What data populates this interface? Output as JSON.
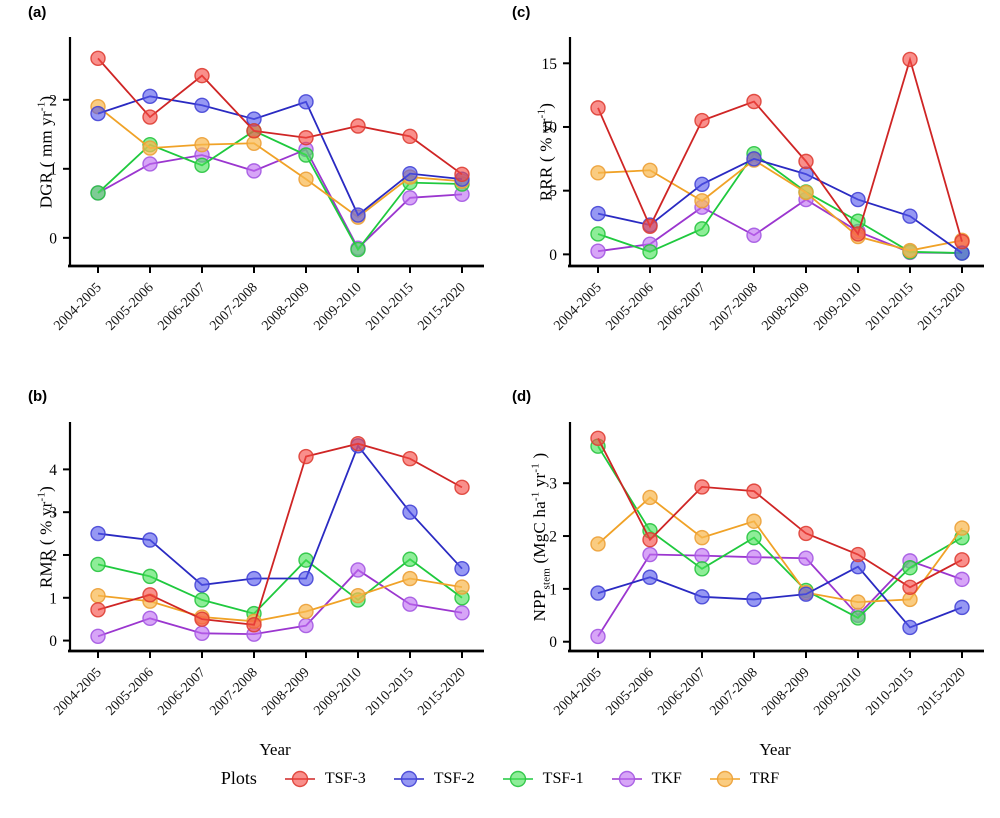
{
  "x_axis_title": "Year",
  "legend": {
    "title": "Plots",
    "items": [
      {
        "label": "TSF-3"
      },
      {
        "label": "TSF-2"
      },
      {
        "label": "TSF-1"
      },
      {
        "label": "TKF"
      },
      {
        "label": "TRF"
      }
    ]
  },
  "plot_colors": {
    "TSF-3": {
      "line": "#cf2525",
      "fill": "rgba(245,75,68,0.62)",
      "stroke": "rgba(222,62,52,0.9)"
    },
    "TSF-2": {
      "line": "#2a2ac2",
      "fill": "rgba(85,88,235,0.62)",
      "stroke": "rgba(68,68,214,0.9)"
    },
    "TSF-1": {
      "line": "#1fc93e",
      "fill": "rgba(72,226,88,0.62)",
      "stroke": "rgba(40,196,64,0.9)"
    },
    "TKF": {
      "line": "#9b36cf",
      "fill": "rgba(190,110,242,0.62)",
      "stroke": "rgba(164,88,226,0.9)"
    },
    "TRF": {
      "line": "#f0a227",
      "fill": "rgba(248,185,80,0.72)",
      "stroke": "rgba(236,160,54,0.9)"
    }
  },
  "chart_data": [
    {
      "id": "a",
      "label": "(a)",
      "type": "line",
      "ylabel": [
        {
          "t": "DGR ( mm yr"
        },
        {
          "t": "-1",
          "s": "sup"
        },
        {
          "t": ")"
        }
      ],
      "categories": [
        "2004-2005",
        "2005-2006",
        "2006-2007",
        "2007-2008",
        "2008-2009",
        "2009-2010",
        "2010-2015",
        "2015-2020"
      ],
      "yticks": [
        0,
        1,
        2
      ],
      "ylim": [
        -0.35,
        2.75
      ],
      "grid": false,
      "series": [
        {
          "name": "TKF",
          "values": [
            0.65,
            1.07,
            1.2,
            0.97,
            1.28,
            -0.15,
            0.58,
            0.63
          ]
        },
        {
          "name": "TSF-1",
          "values": [
            0.65,
            1.35,
            1.05,
            1.55,
            1.2,
            -0.17,
            0.8,
            0.78
          ]
        },
        {
          "name": "TRF",
          "values": [
            1.9,
            1.3,
            1.35,
            1.37,
            0.85,
            0.3,
            0.88,
            0.82
          ]
        },
        {
          "name": "TSF-2",
          "values": [
            1.8,
            2.05,
            1.92,
            1.72,
            1.97,
            0.33,
            0.93,
            0.85
          ]
        },
        {
          "name": "TSF-3",
          "values": [
            2.6,
            1.75,
            2.35,
            1.55,
            1.45,
            1.62,
            1.47,
            0.92
          ]
        }
      ]
    },
    {
      "id": "b",
      "label": "(b)",
      "type": "line",
      "ylabel": [
        {
          "t": "RMR ( % yr"
        },
        {
          "t": "-1",
          "s": "sup"
        },
        {
          "t": ")"
        }
      ],
      "categories": [
        "2004-2005",
        "2005-2006",
        "2006-2007",
        "2007-2008",
        "2008-2009",
        "2009-2010",
        "2010-2015",
        "2015-2020"
      ],
      "yticks": [
        0,
        1,
        2,
        3,
        4
      ],
      "ylim": [
        -0.15,
        4.85
      ],
      "grid": false,
      "series": [
        {
          "name": "TKF",
          "values": [
            0.1,
            0.52,
            0.17,
            0.15,
            0.35,
            1.65,
            0.85,
            0.65
          ]
        },
        {
          "name": "TSF-1",
          "values": [
            1.78,
            1.5,
            0.95,
            0.63,
            1.88,
            0.95,
            1.9,
            1.0
          ]
        },
        {
          "name": "TRF",
          "values": [
            1.05,
            0.92,
            0.55,
            0.45,
            0.68,
            1.05,
            1.45,
            1.25
          ]
        },
        {
          "name": "TSF-2",
          "values": [
            2.5,
            2.35,
            1.3,
            1.45,
            1.45,
            4.55,
            3.0,
            1.68
          ]
        },
        {
          "name": "TSF-3",
          "values": [
            0.72,
            1.07,
            0.5,
            0.37,
            4.3,
            4.6,
            4.25,
            3.58
          ]
        }
      ]
    },
    {
      "id": "c",
      "label": "(c)",
      "type": "line",
      "ylabel": [
        {
          "t": "RRR ( % yr"
        },
        {
          "t": "-1",
          "s": "sup"
        },
        {
          "t": ")"
        }
      ],
      "categories": [
        "2004-2005",
        "2005-2006",
        "2006-2007",
        "2007-2008",
        "2008-2009",
        "2009-2010",
        "2010-2015",
        "2015-2020"
      ],
      "yticks": [
        0,
        5,
        10,
        15
      ],
      "ylim": [
        -0.6,
        16.2
      ],
      "grid": false,
      "series": [
        {
          "name": "TKF",
          "values": [
            0.25,
            0.8,
            3.7,
            1.5,
            4.3,
            1.8,
            0.15,
            0.1
          ]
        },
        {
          "name": "TSF-1",
          "values": [
            1.6,
            0.2,
            2.0,
            7.9,
            4.9,
            2.6,
            0.2,
            0.1
          ]
        },
        {
          "name": "TRF",
          "values": [
            6.4,
            6.6,
            4.2,
            7.4,
            4.85,
            1.4,
            0.3,
            1.1
          ]
        },
        {
          "name": "TSF-2",
          "values": [
            3.2,
            2.3,
            5.5,
            7.5,
            6.3,
            4.3,
            3.0,
            0.1
          ]
        },
        {
          "name": "TSF-3",
          "values": [
            11.5,
            2.2,
            10.5,
            12.0,
            7.3,
            1.6,
            15.3,
            1.0
          ]
        }
      ]
    },
    {
      "id": "d",
      "label": "(d)",
      "type": "line",
      "ylabel": [
        {
          "t": "NPP"
        },
        {
          "t": "stem",
          "s": "sub"
        },
        {
          "t": " (MgC ha"
        },
        {
          "t": "-1",
          "s": "sup"
        },
        {
          "t": " yr"
        },
        {
          "t": "-1",
          "s": "sup"
        },
        {
          "t": " )"
        }
      ],
      "categories": [
        "2004-2005",
        "2005-2006",
        "2006-2007",
        "2007-2008",
        "2008-2009",
        "2009-2010",
        "2010-2015",
        "2015-2020"
      ],
      "yticks": [
        0,
        1,
        2,
        3
      ],
      "ylim": [
        -0.1,
        3.95
      ],
      "grid": false,
      "series": [
        {
          "name": "TKF",
          "values": [
            0.1,
            1.65,
            1.63,
            1.6,
            1.58,
            0.5,
            1.53,
            1.18
          ]
        },
        {
          "name": "TSF-1",
          "values": [
            3.7,
            2.1,
            1.38,
            1.97,
            0.97,
            0.45,
            1.4,
            1.97
          ]
        },
        {
          "name": "TRF",
          "values": [
            1.85,
            2.73,
            1.97,
            2.28,
            0.93,
            0.75,
            0.8,
            2.15
          ]
        },
        {
          "name": "TSF-2",
          "values": [
            0.92,
            1.22,
            0.85,
            0.8,
            0.9,
            1.42,
            0.27,
            0.65
          ]
        },
        {
          "name": "TSF-3",
          "values": [
            3.85,
            1.93,
            2.93,
            2.85,
            2.05,
            1.65,
            1.03,
            1.55
          ]
        }
      ]
    }
  ]
}
